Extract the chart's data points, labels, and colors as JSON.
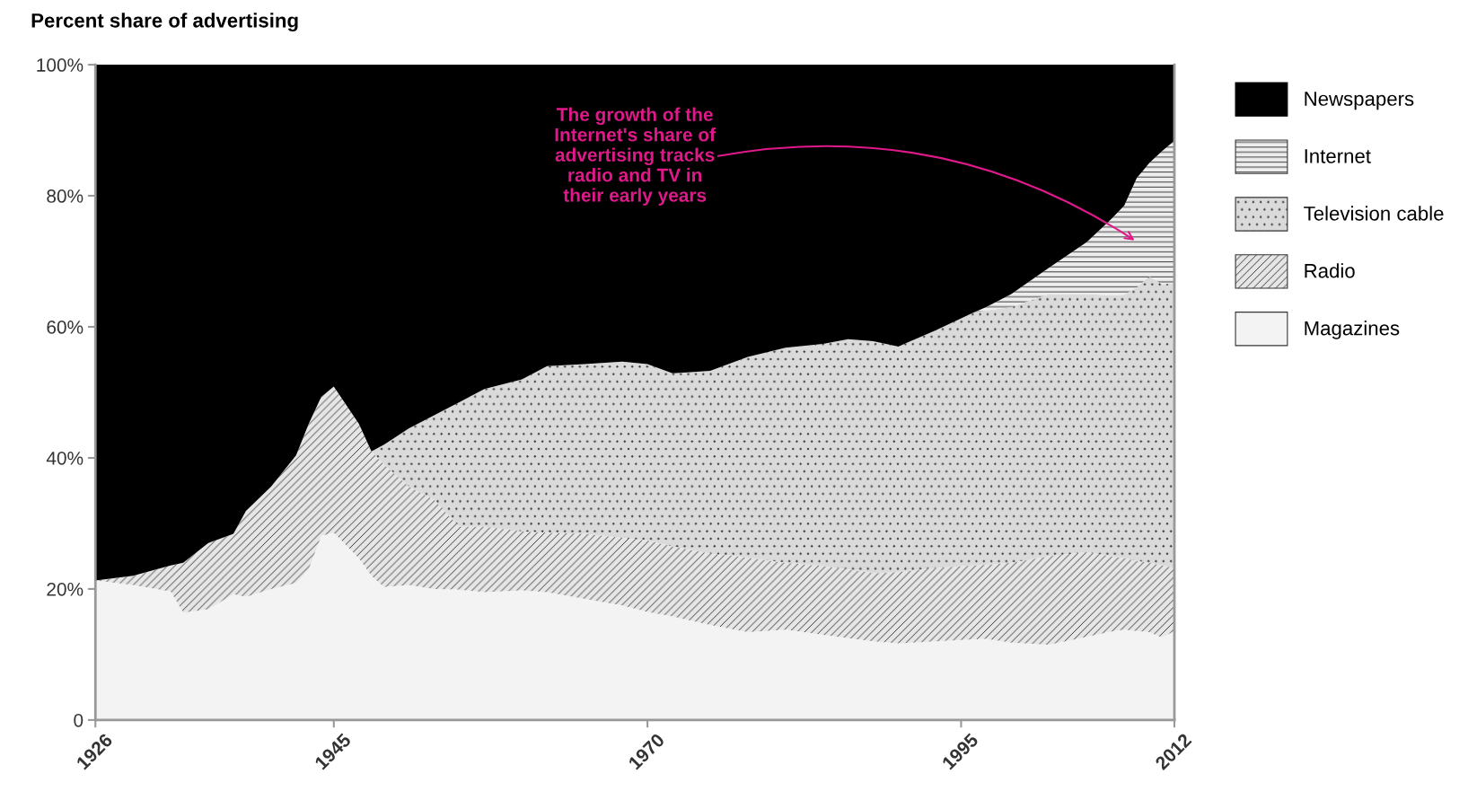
{
  "chart_data": {
    "type": "area",
    "stacked": true,
    "title": "Percent share of advertising",
    "x": [
      1926,
      1929,
      1932,
      1933,
      1935,
      1937,
      1938,
      1940,
      1942,
      1943,
      1944,
      1945,
      1947,
      1948,
      1949,
      1951,
      1953,
      1955,
      1957,
      1960,
      1962,
      1965,
      1968,
      1970,
      1972,
      1975,
      1978,
      1981,
      1984,
      1986,
      1988,
      1990,
      1993,
      1996,
      1997,
      1999,
      2002,
      2005,
      2007,
      2008,
      2009,
      2010,
      2011,
      2012
    ],
    "series": [
      {
        "name": "Magazines",
        "color": "#f3f3f3",
        "values": [
          21.3,
          20.6,
          19.6,
          16.4,
          16.9,
          19.2,
          18.8,
          20.0,
          20.9,
          23.0,
          28.1,
          28.6,
          24.7,
          22.0,
          20.3,
          20.6,
          20.0,
          19.9,
          19.5,
          19.8,
          19.5,
          18.5,
          17.5,
          16.5,
          15.8,
          14.5,
          13.4,
          13.8,
          13.0,
          12.5,
          12.0,
          11.7,
          12.0,
          12.3,
          12.4,
          11.8,
          11.5,
          12.7,
          13.5,
          13.8,
          13.6,
          13.4,
          12.6,
          13.6
        ]
      },
      {
        "name": "Radio",
        "color": "#e6e6e6",
        "values": [
          0,
          1.4,
          4.0,
          7.6,
          10.1,
          9.2,
          13.1,
          15.6,
          19.5,
          22.2,
          21.2,
          22.3,
          20.5,
          19.0,
          18.7,
          15.0,
          13.6,
          9.6,
          10.0,
          9.0,
          9.1,
          9.9,
          10.3,
          10.9,
          10.7,
          10.9,
          11.4,
          10.2,
          10.5,
          10.5,
          10.4,
          10.9,
          11.2,
          11.3,
          11.3,
          12.2,
          13.5,
          12.9,
          11.5,
          10.9,
          10.7,
          10.6,
          11.0,
          9.6
        ]
      },
      {
        "name": "Television cable",
        "color": "#dadada",
        "values": [
          null,
          null,
          null,
          null,
          null,
          null,
          null,
          null,
          null,
          null,
          null,
          null,
          null,
          0,
          3.0,
          8.9,
          12.9,
          19.0,
          21.0,
          23.2,
          25.4,
          25.9,
          26.9,
          26.9,
          26.4,
          27.9,
          30.6,
          32.8,
          33.9,
          35.1,
          35.4,
          34.4,
          36.3,
          38.6,
          38.8,
          39.0,
          40.0,
          39.4,
          39.8,
          40.2,
          41.7,
          43.7,
          42.9,
          43.4
        ]
      },
      {
        "name": "Internet",
        "color": "#ededed",
        "values": [
          null,
          null,
          null,
          null,
          null,
          null,
          null,
          null,
          null,
          null,
          null,
          null,
          null,
          null,
          null,
          null,
          null,
          null,
          null,
          null,
          null,
          null,
          null,
          null,
          null,
          null,
          null,
          null,
          null,
          null,
          null,
          null,
          null,
          0,
          0.5,
          2.0,
          4.0,
          7.9,
          11.7,
          13.6,
          16.7,
          17.3,
          20.3,
          21.8
        ]
      },
      {
        "name": "Newspapers",
        "color": "#000000",
        "values": [
          78.7,
          78.0,
          76.4,
          76.0,
          73.0,
          71.6,
          68.1,
          64.4,
          59.6,
          54.8,
          50.7,
          49.1,
          54.8,
          59.0,
          58.0,
          55.5,
          53.5,
          51.5,
          49.5,
          48.0,
          46.0,
          45.7,
          45.3,
          45.7,
          47.1,
          46.7,
          44.6,
          43.2,
          42.6,
          41.9,
          42.2,
          43.0,
          40.5,
          37.8,
          37.0,
          35.0,
          31.0,
          27.1,
          23.5,
          21.5,
          17.3,
          15.0,
          13.2,
          11.6
        ]
      }
    ],
    "xlim": [
      1926,
      2012
    ],
    "xticks": [
      1926,
      1945,
      1970,
      1995,
      2012
    ],
    "ylim": [
      0,
      100
    ],
    "yticks": [
      0,
      {
        "value": 20,
        "label": "20%"
      },
      {
        "value": 40,
        "label": "40%"
      },
      {
        "value": 60,
        "label": "60%"
      },
      {
        "value": 80,
        "label": "80%"
      },
      {
        "value": 100,
        "label": "100%"
      }
    ],
    "annotations": [
      "The growth of the\nInternet's share of\nadvertising tracks\nradio and TV in\ntheir early years"
    ],
    "legend": "right"
  }
}
